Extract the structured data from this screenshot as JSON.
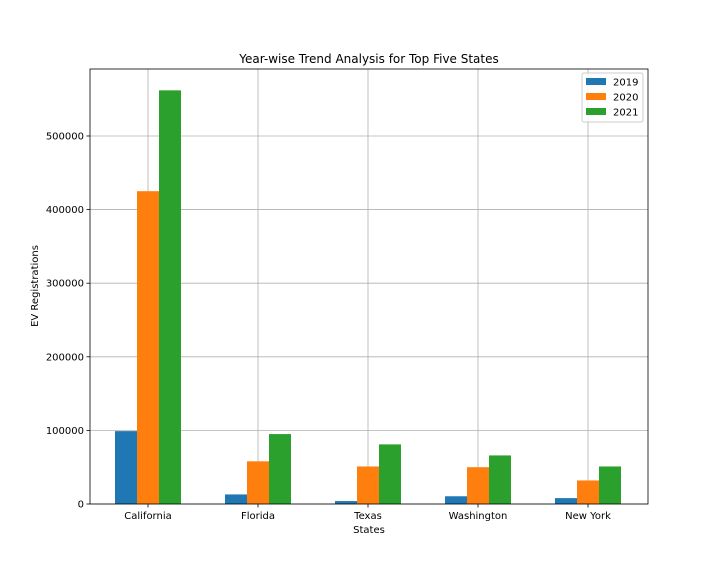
{
  "chart_data": {
    "type": "bar",
    "title": "Year-wise Trend Analysis for Top Five States",
    "xlabel": "States",
    "ylabel": "EV Registrations",
    "categories": [
      "California",
      "Florida",
      "Texas",
      "Washington",
      "New York"
    ],
    "series": [
      {
        "name": "2019",
        "color": "#1f77b4",
        "values": [
          99000,
          13000,
          4000,
          10500,
          8000
        ]
      },
      {
        "name": "2020",
        "color": "#ff7f0e",
        "values": [
          425000,
          58000,
          51000,
          50000,
          32000
        ]
      },
      {
        "name": "2021",
        "color": "#2ca02c",
        "values": [
          562000,
          95000,
          81000,
          66000,
          51000
        ]
      }
    ],
    "ylim": [
      0,
      591000
    ],
    "yticks": [
      0,
      100000,
      200000,
      300000,
      400000,
      500000
    ],
    "ytick_labels": [
      "0",
      "100000",
      "200000",
      "300000",
      "400000",
      "500000"
    ],
    "grid": true,
    "legend_position": "top-right"
  }
}
